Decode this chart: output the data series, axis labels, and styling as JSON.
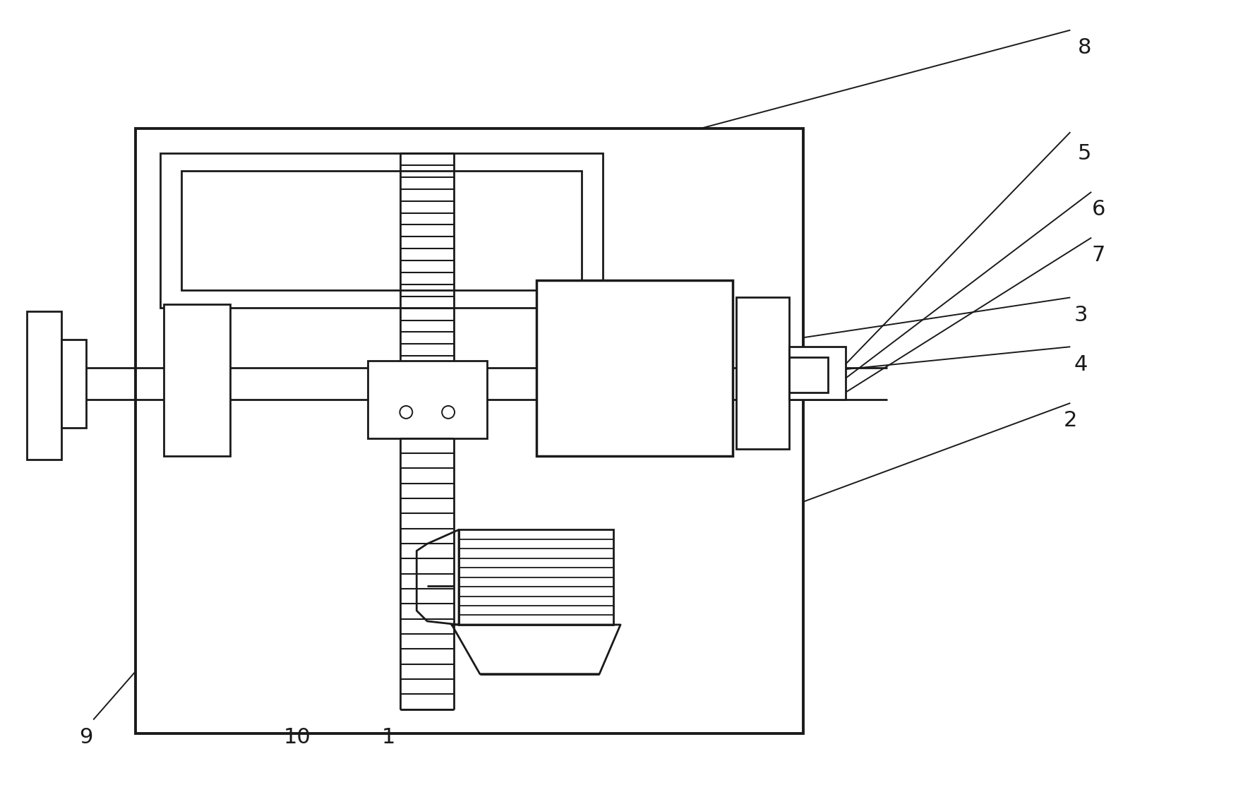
{
  "bg": "#ffffff",
  "lc": "#1a1a1a",
  "lw": 2.0,
  "fw": 17.78,
  "fh": 11.12,
  "dpi": 100,
  "label_fs": 22,
  "ann_lw_factor": 0.7
}
